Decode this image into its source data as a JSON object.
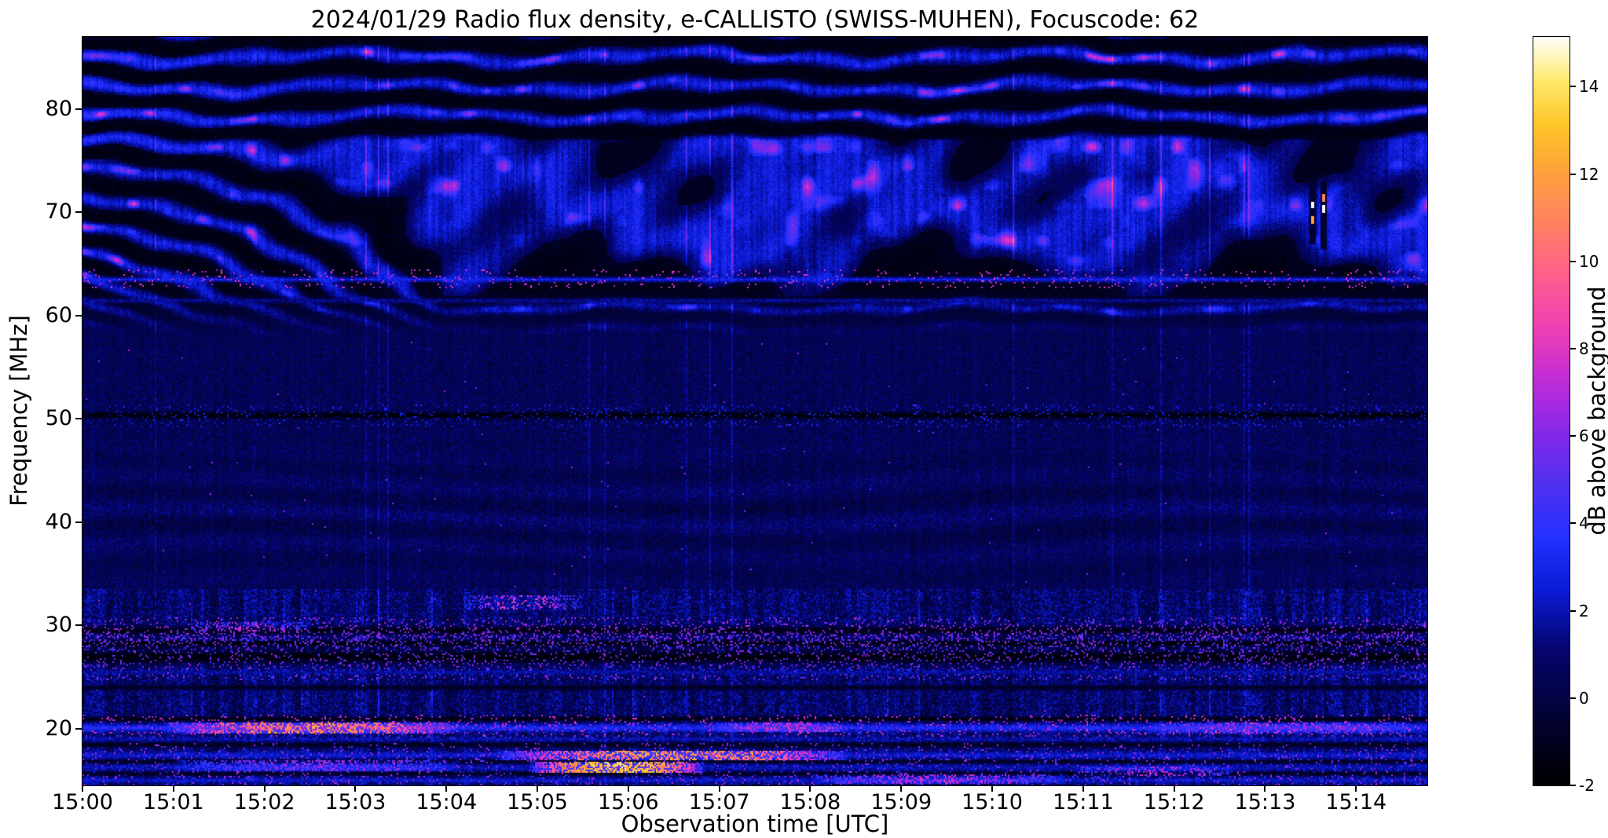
{
  "chart_data": {
    "type": "heatmap",
    "title": "2024/01/29  Radio flux density, e-CALLISTO (SWISS-MUHEN), Focuscode: 62",
    "xlabel": "Observation time [UTC]",
    "ylabel": "Frequency [MHz]",
    "date": "2024/01/29",
    "instrument": "e-CALLISTO (SWISS-MUHEN)",
    "focuscode": 62,
    "x_ticks": [
      "15:00",
      "15:01",
      "15:02",
      "15:03",
      "15:04",
      "15:05",
      "15:06",
      "15:07",
      "15:08",
      "15:09",
      "15:10",
      "15:11",
      "15:12",
      "15:13",
      "15:14"
    ],
    "x_start_utc": "15:00:00",
    "x_range_seconds": 887,
    "y_ticks": [
      20,
      30,
      40,
      50,
      60,
      70,
      80
    ],
    "y_range_mhz": [
      14.5,
      87
    ],
    "grid": false,
    "colorbar": {
      "label": "dB above background",
      "ticks": [
        -2,
        0,
        2,
        4,
        6,
        8,
        10,
        12,
        14
      ],
      "range": [
        -2,
        15.14
      ],
      "colormap_name": "gnuplot2-like (black-blue-violet-magenta-pink-orange-yellow-white)",
      "colormap_stops": [
        [
          0.0,
          "#000000"
        ],
        [
          0.09,
          "#020233"
        ],
        [
          0.18,
          "#05056e"
        ],
        [
          0.26,
          "#0b1bd6"
        ],
        [
          0.33,
          "#2430ff"
        ],
        [
          0.4,
          "#5030f0"
        ],
        [
          0.47,
          "#8428e8"
        ],
        [
          0.54,
          "#c02cd8"
        ],
        [
          0.61,
          "#ee3fb4"
        ],
        [
          0.68,
          "#ff5f8d"
        ],
        [
          0.75,
          "#ff8060"
        ],
        [
          0.82,
          "#ffa23c"
        ],
        [
          0.88,
          "#ffc428"
        ],
        [
          0.94,
          "#ffe96a"
        ],
        [
          1.0,
          "#ffffff"
        ]
      ]
    },
    "features": [
      "Quasi-horizontal wavy interference fringes between ~58 and 87 MHz across the whole interval (~12 alternating dark/bright bands, occasional magenta-bright crests)",
      "Fringes drift diagonally downward from ~80 MHz toward ~60 MHz during 15:00-15:04, then flatten",
      "Bright narrow emission line near 63.5 MHz with magenta speckles, persistent across the interval",
      "Dark horizontal notch line near 50.3 MHz across the whole width",
      "Dark RFI-notch bands near 26.5-28.5 MHz and 29.5 MHz containing colored speckles",
      "Strong RFI line at 20 MHz across full width, brightest (orange/yellow) from 15:01 to 15:04, pink patches near 15:07-15:08 and after 15:12",
      "Bright RFI band near 17.3 MHz from ~15:05 to ~15:08 (orange/yellow)",
      "Saturated yellow cluster near 16.2 MHz around 15:05-15:07",
      "Pink streaks along the bottom edge (~15 MHz) around 15:08-15:10",
      "Two saturated white pixels near 70.5 MHz at ~15:13.6 with short dark vertical streaks",
      "Speckled blue noise background with vertical striping below ~33 MHz"
    ],
    "render": {
      "background_db": 0.45,
      "fringes": {
        "fmin": 58,
        "f0": 57,
        "spacing0": 2.1,
        "growth": 0.03,
        "amp_db": 2.2,
        "dark_db": -1.85,
        "drift_cycles": 5.5,
        "drift_saturate_s": 240
      },
      "lines": [
        {
          "f": 63.55,
          "w": 0.35,
          "db": 2.8,
          "sp": 6.5,
          "sp_p": 0.05
        },
        {
          "f": 61.5,
          "w": 0.3,
          "db": 1.4
        },
        {
          "f": 50.3,
          "w": 0.45,
          "db": -1.9,
          "sp": 1.2,
          "sp_p": 0.1
        },
        {
          "f": 29.45,
          "w": 0.5,
          "db": -1.5,
          "sp": 5.0,
          "sp_p": 0.1
        },
        {
          "f": 28.2,
          "w": 0.45,
          "db": -1.7,
          "sp": 4.5,
          "sp_p": 0.08
        },
        {
          "f": 26.9,
          "w": 0.85,
          "db": -1.8,
          "sp": 4.5,
          "sp_p": 0.1
        },
        {
          "f": 25.4,
          "w": 0.3,
          "db": 1.6
        },
        {
          "f": 23.9,
          "w": 0.3,
          "db": -1.1
        },
        {
          "f": 20.85,
          "w": 0.3,
          "db": -1.7
        },
        {
          "f": 20.0,
          "w": 0.5,
          "db": 3.2,
          "sp": 6.0,
          "sp_p": 0.08
        },
        {
          "f": 18.9,
          "w": 0.3,
          "db": 1.8
        },
        {
          "f": 18.35,
          "w": 0.3,
          "db": -1.3
        },
        {
          "f": 17.35,
          "w": 0.45,
          "db": 2.3,
          "sp": 5.0,
          "sp_p": 0.05
        },
        {
          "f": 16.7,
          "w": 0.25,
          "db": -1.4
        },
        {
          "f": 16.15,
          "w": 0.45,
          "db": 1.9,
          "sp": 4.5,
          "sp_p": 0.05
        },
        {
          "f": 15.55,
          "w": 0.25,
          "db": -1.3
        },
        {
          "f": 14.9,
          "w": 0.35,
          "db": 2.2,
          "sp": 5.0,
          "sp_p": 0.06
        }
      ],
      "hot_segments": [
        {
          "f": 20.0,
          "w": 0.55,
          "t0": 55,
          "t1": 250,
          "db": 8.5,
          "jitter": 4.5,
          "p": 0.5,
          "lift": 2.5
        },
        {
          "f": 20.05,
          "w": 0.45,
          "t0": 415,
          "t1": 505,
          "db": 6.0,
          "jitter": 2.5,
          "p": 0.4,
          "lift": 1.5
        },
        {
          "f": 20.0,
          "w": 0.5,
          "t0": 700,
          "t1": 880,
          "db": 5.5,
          "jitter": 2.5,
          "p": 0.3,
          "lift": 1.2
        },
        {
          "f": 17.35,
          "w": 0.5,
          "t0": 275,
          "t1": 505,
          "db": 9.5,
          "jitter": 4.0,
          "p": 0.5,
          "lift": 2.2
        },
        {
          "f": 16.15,
          "w": 0.55,
          "t0": 295,
          "t1": 410,
          "db": 11.5,
          "jitter": 3.5,
          "p": 0.6,
          "lift": 3.0
        },
        {
          "f": 16.3,
          "w": 0.5,
          "t0": 60,
          "t1": 250,
          "db": 5.0,
          "jitter": 2.0,
          "p": 0.35,
          "lift": 1.5
        },
        {
          "f": 15.1,
          "w": 0.45,
          "t0": 480,
          "t1": 650,
          "db": 6.0,
          "jitter": 2.5,
          "p": 0.35,
          "lift": 1.2
        },
        {
          "f": 15.8,
          "w": 0.4,
          "t0": 655,
          "t1": 760,
          "db": 6.0,
          "jitter": 2.0,
          "p": 0.3,
          "lift": 1.0
        },
        {
          "f": 29.8,
          "w": 0.5,
          "t0": 70,
          "t1": 150,
          "db": 6.0,
          "jitter": 2.0,
          "p": 0.3,
          "lift": 1.0
        },
        {
          "f": 32.2,
          "w": 0.7,
          "t0": 250,
          "t1": 330,
          "db": 6.5,
          "jitter": 2.5,
          "p": 0.25,
          "lift": 0.8
        }
      ],
      "white_dots": [
        {
          "t": 812,
          "f": 70.8,
          "db": 15.2
        },
        {
          "t": 819,
          "f": 70.4,
          "db": 15.2
        },
        {
          "t": 812,
          "f": 69.3,
          "db": 12.0
        },
        {
          "t": 819,
          "f": 71.5,
          "db": 11.0
        }
      ],
      "dark_streaks": [
        {
          "t0": 810,
          "t1": 814,
          "f0": 67.0,
          "f1": 73.8
        },
        {
          "t0": 817,
          "t1": 821,
          "f0": 66.5,
          "f1": 73.0
        }
      ]
    }
  }
}
